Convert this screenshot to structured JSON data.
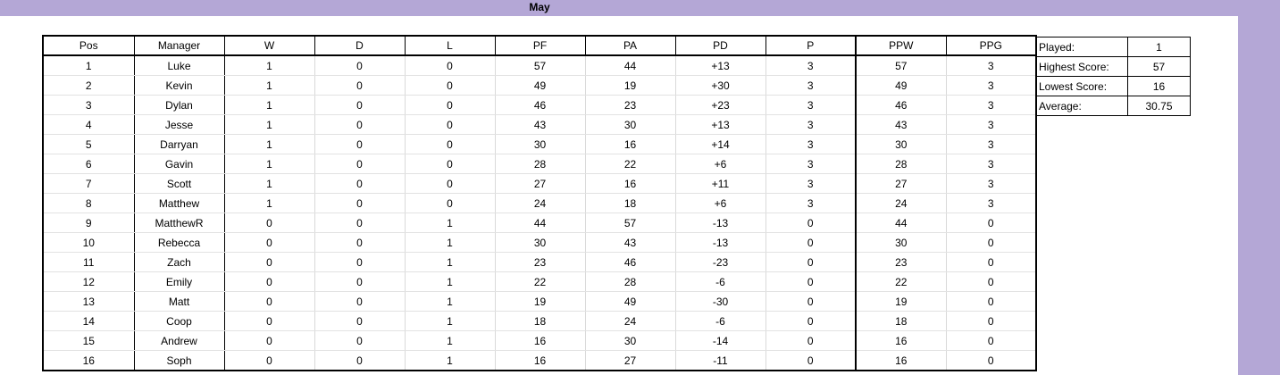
{
  "title": "May",
  "table": {
    "headers": [
      "Pos",
      "Manager",
      "W",
      "D",
      "L",
      "PF",
      "PA",
      "PD",
      "P",
      "PPW",
      "PPG"
    ],
    "rows": [
      [
        "1",
        "Luke",
        "1",
        "0",
        "0",
        "57",
        "44",
        "+13",
        "3",
        "57",
        "3"
      ],
      [
        "2",
        "Kevin",
        "1",
        "0",
        "0",
        "49",
        "19",
        "+30",
        "3",
        "49",
        "3"
      ],
      [
        "3",
        "Dylan",
        "1",
        "0",
        "0",
        "46",
        "23",
        "+23",
        "3",
        "46",
        "3"
      ],
      [
        "4",
        "Jesse",
        "1",
        "0",
        "0",
        "43",
        "30",
        "+13",
        "3",
        "43",
        "3"
      ],
      [
        "5",
        "Darryan",
        "1",
        "0",
        "0",
        "30",
        "16",
        "+14",
        "3",
        "30",
        "3"
      ],
      [
        "6",
        "Gavin",
        "1",
        "0",
        "0",
        "28",
        "22",
        "+6",
        "3",
        "28",
        "3"
      ],
      [
        "7",
        "Scott",
        "1",
        "0",
        "0",
        "27",
        "16",
        "+11",
        "3",
        "27",
        "3"
      ],
      [
        "8",
        "Matthew",
        "1",
        "0",
        "0",
        "24",
        "18",
        "+6",
        "3",
        "24",
        "3"
      ],
      [
        "9",
        "MatthewR",
        "0",
        "0",
        "1",
        "44",
        "57",
        "-13",
        "0",
        "44",
        "0"
      ],
      [
        "10",
        "Rebecca",
        "0",
        "0",
        "1",
        "30",
        "43",
        "-13",
        "0",
        "30",
        "0"
      ],
      [
        "11",
        "Zach",
        "0",
        "0",
        "1",
        "23",
        "46",
        "-23",
        "0",
        "23",
        "0"
      ],
      [
        "12",
        "Emily",
        "0",
        "0",
        "1",
        "22",
        "28",
        "-6",
        "0",
        "22",
        "0"
      ],
      [
        "13",
        "Matt",
        "0",
        "0",
        "1",
        "19",
        "49",
        "-30",
        "0",
        "19",
        "0"
      ],
      [
        "14",
        "Coop",
        "0",
        "0",
        "1",
        "18",
        "24",
        "-6",
        "0",
        "18",
        "0"
      ],
      [
        "15",
        "Andrew",
        "0",
        "0",
        "1",
        "16",
        "30",
        "-14",
        "0",
        "16",
        "0"
      ],
      [
        "16",
        "Soph",
        "0",
        "0",
        "1",
        "16",
        "27",
        "-11",
        "0",
        "16",
        "0"
      ]
    ]
  },
  "summary": [
    {
      "label": "Played:",
      "value": "1"
    },
    {
      "label": "Highest Score:",
      "value": "57"
    },
    {
      "label": "Lowest Score:",
      "value": "16"
    },
    {
      "label": "Average:",
      "value": "30.75"
    }
  ],
  "colors": {
    "band": "#b4a7d6"
  }
}
